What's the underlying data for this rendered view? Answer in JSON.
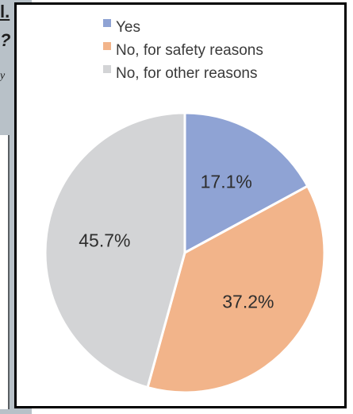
{
  "cropped_left_text": {
    "line1": "l.",
    "line2": "?",
    "line3": "y"
  },
  "colors": {
    "yes": "#8fa3d4",
    "safety": "#f2b48a",
    "other": "#d3d4d6",
    "left_panel": "#b8c1c8"
  },
  "chart_data": {
    "type": "pie",
    "title": "",
    "legend_position": "top",
    "series": [
      {
        "name": "Yes",
        "value": 17.1,
        "label": "17.1%",
        "color": "#8fa3d4"
      },
      {
        "name": "No, for safety reasons",
        "value": 37.2,
        "label": "37.2%",
        "color": "#f2b48a"
      },
      {
        "name": "No, for other reasons",
        "value": 45.7,
        "label": "45.7%",
        "color": "#d3d4d6"
      }
    ]
  }
}
